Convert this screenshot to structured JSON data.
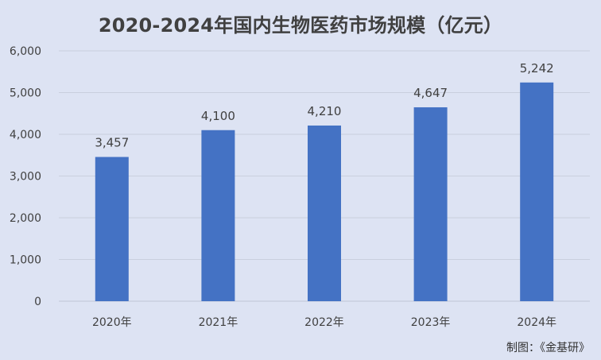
{
  "chart_data": {
    "type": "bar",
    "title": "2020-2024年国内生物医药市场规模（亿元）",
    "categories": [
      "2020年",
      "2021年",
      "2022年",
      "2023年",
      "2024年"
    ],
    "values": [
      3457,
      4100,
      4210,
      4647,
      5242
    ],
    "value_labels": [
      "3,457",
      "4,100",
      "4,210",
      "4,647",
      "5,242"
    ],
    "ylim": [
      0,
      6000
    ],
    "yticks": [
      0,
      1000,
      2000,
      3000,
      4000,
      5000,
      6000
    ],
    "ytick_labels": [
      "0",
      "1,000",
      "2,000",
      "3,000",
      "4,000",
      "5,000",
      "6,000"
    ],
    "grid": true,
    "bar_color": "#4472c4"
  },
  "source_note": "制图：《金基研》",
  "colors": {
    "background": "#dde3f3",
    "grid": "#c9cfde",
    "text": "#404040"
  }
}
